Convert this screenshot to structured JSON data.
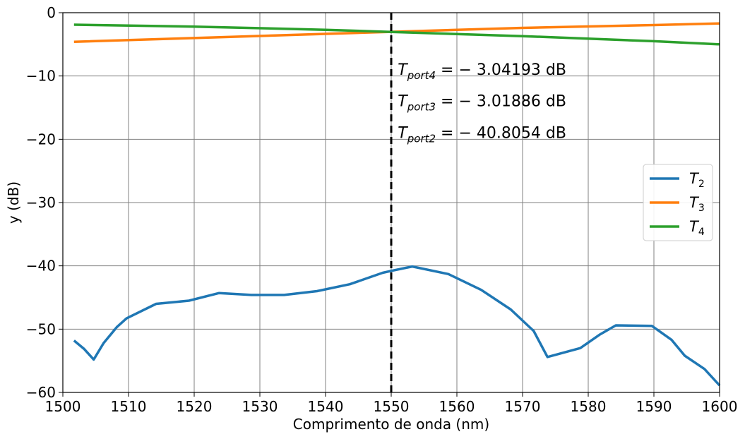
{
  "chart_data": {
    "type": "line",
    "xlabel": "Comprimento de onda (nm)",
    "ylabel": "y (dB)",
    "xlim": [
      1500,
      1600
    ],
    "ylim": [
      -60,
      0
    ],
    "xticks": [
      1500,
      1510,
      1520,
      1530,
      1540,
      1550,
      1560,
      1570,
      1580,
      1590,
      1600
    ],
    "yticks": [
      0,
      -10,
      -20,
      -30,
      -40,
      -50,
      -60
    ],
    "xtick_labels": [
      "1500",
      "1510",
      "1520",
      "1530",
      "1540",
      "1550",
      "1560",
      "1570",
      "1580",
      "1590",
      "1600"
    ],
    "ytick_labels": [
      "0",
      "−10",
      "−20",
      "−30",
      "−40",
      "−50",
      "−60"
    ],
    "grid": true,
    "legend_position": "center-right",
    "vline": {
      "x": 1550,
      "style": "dashed",
      "color": "#000000"
    },
    "annotations": [
      {
        "base": "T",
        "sub": "port4",
        "rest": " = − 3.04193 dB",
        "x": 1551,
        "y": -9.8
      },
      {
        "base": "T",
        "sub": "port3",
        "rest": " = − 3.01886 dB",
        "x": 1551,
        "y": -14.8
      },
      {
        "base": "T",
        "sub": "port2",
        "rest": " = − 40.8054 dB",
        "x": 1551,
        "y": -19.8
      }
    ],
    "series": [
      {
        "name": "T2",
        "legend_base": "T",
        "legend_sub": "2",
        "color": "#1f77b4",
        "x": [
          1501.7,
          1503.2,
          1504.7,
          1506.2,
          1508.2,
          1509.7,
          1514.2,
          1519.2,
          1523.8,
          1528.7,
          1533.7,
          1538.7,
          1543.7,
          1548.7,
          1550.0,
          1553.2,
          1558.7,
          1563.7,
          1568.2,
          1571.7,
          1573.8,
          1578.8,
          1581.7,
          1584.2,
          1589.7,
          1592.7,
          1594.7,
          1597.7,
          1600.0
        ],
        "values": [
          -51.8,
          -53.1,
          -54.8,
          -52.2,
          -49.7,
          -48.3,
          -46.0,
          -45.5,
          -44.3,
          -44.6,
          -44.6,
          -44.0,
          -42.9,
          -41.1,
          -40.8,
          -40.1,
          -41.3,
          -43.8,
          -46.9,
          -50.3,
          -54.4,
          -53.0,
          -50.9,
          -49.4,
          -49.5,
          -51.7,
          -54.2,
          -56.3,
          -58.9
        ]
      },
      {
        "name": "T3",
        "legend_base": "T",
        "legend_sub": "3",
        "color": "#ff7f0e",
        "x": [
          1501.7,
          1520,
          1540,
          1550,
          1570,
          1590,
          1600
        ],
        "values": [
          -4.6,
          -4.0,
          -3.35,
          -3.02,
          -2.4,
          -1.95,
          -1.7
        ]
      },
      {
        "name": "T4",
        "legend_base": "T",
        "legend_sub": "4",
        "color": "#2ca02c",
        "x": [
          1501.7,
          1520,
          1540,
          1550,
          1570,
          1590,
          1600
        ],
        "values": [
          -1.9,
          -2.2,
          -2.7,
          -3.04,
          -3.7,
          -4.5,
          -5.0
        ]
      }
    ]
  }
}
